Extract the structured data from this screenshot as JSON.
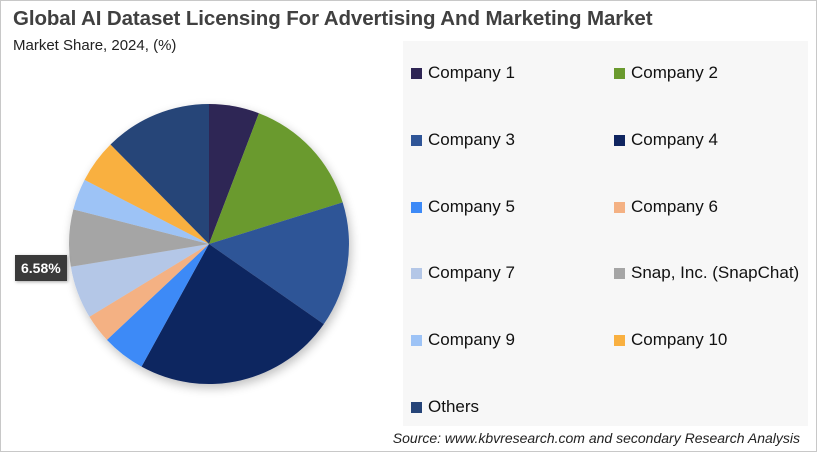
{
  "title": "Global AI Dataset Licensing For Advertising And Marketing Market",
  "subtitle": "Market Share, 2024, (%)",
  "source": "Source: www.kbvresearch.com and secondary Research Analysis",
  "callout": {
    "label": "6.58%",
    "series": "Snap, Inc. (SnapChat)"
  },
  "legend": [
    {
      "label": "Company 1",
      "color": "#2E2554"
    },
    {
      "label": "Company 2",
      "color": "#6A9A2E"
    },
    {
      "label": "Company 3",
      "color": "#2F5597"
    },
    {
      "label": "Company 4",
      "color": "#0F2560"
    },
    {
      "label": "Company 5",
      "color": "#3D8AF7"
    },
    {
      "label": "Company 6",
      "color": "#F4B183"
    },
    {
      "label": "Company 7",
      "color": "#B4C7E7"
    },
    {
      "label": "Snap, Inc. (SnapChat)",
      "color": "#A5A5A5"
    },
    {
      "label": "Company 9",
      "color": "#9DC3F6"
    },
    {
      "label": "Company 10",
      "color": "#F9B040"
    },
    {
      "label": "Others",
      "color": "#264478"
    }
  ],
  "chart_data": {
    "type": "pie",
    "title": "Global AI Dataset Licensing For Advertising And Marketing Market",
    "subtitle": "Market Share, 2024, (%)",
    "categories": [
      "Company 1",
      "Company 2",
      "Company 3",
      "Company 4",
      "Company 5",
      "Company 6",
      "Company 7",
      "Snap, Inc. (SnapChat)",
      "Company 9",
      "Company 10",
      "Others"
    ],
    "values": [
      5.8,
      14.4,
      14.5,
      23.3,
      5.0,
      3.3,
      6.1,
      6.58,
      3.6,
      5.0,
      12.42
    ],
    "colors": [
      "#2E2554",
      "#6A9A2E",
      "#2F5597",
      "#0F2560",
      "#3D8AF7",
      "#F4B183",
      "#B4C7E7",
      "#A5A5A5",
      "#9DC3F6",
      "#F9B040",
      "#264478"
    ],
    "start_angle_deg": 0,
    "direction": "clockwise",
    "data_labels": [
      {
        "category": "Snap, Inc. (SnapChat)",
        "text": "6.58%"
      }
    ],
    "legend_position": "right"
  }
}
